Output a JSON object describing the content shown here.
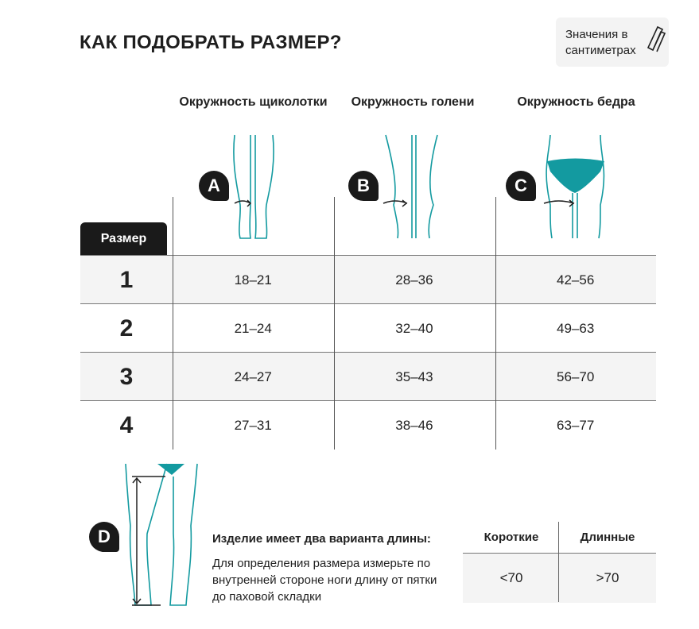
{
  "title": "КАК ПОДОБРАТЬ РАЗМЕР?",
  "units_note": "Значения в сантиметрах",
  "accent_color": "#139aa0",
  "columns": [
    {
      "badge": "A",
      "label": "Окружность щиколотки"
    },
    {
      "badge": "B",
      "label": "Окружность голени"
    },
    {
      "badge": "C",
      "label": "Окружность бедра"
    }
  ],
  "size_header": "Размер",
  "rows": [
    {
      "size": "1",
      "values": [
        "18–21",
        "28–36",
        "42–56"
      ]
    },
    {
      "size": "2",
      "values": [
        "21–24",
        "32–40",
        "49–63"
      ]
    },
    {
      "size": "3",
      "values": [
        "24–27",
        "35–43",
        "56–70"
      ]
    },
    {
      "size": "4",
      "values": [
        "27–31",
        "38–46",
        "63–77"
      ]
    }
  ],
  "length": {
    "badge": "D",
    "heading": "Изделие имеет два варианта длины:",
    "description": "Для определения размера измерьте по внутренней стороне ноги длину от пятки до паховой складки",
    "headers": [
      "Короткие",
      "Длинные"
    ],
    "values": [
      "<70",
      ">70"
    ]
  }
}
